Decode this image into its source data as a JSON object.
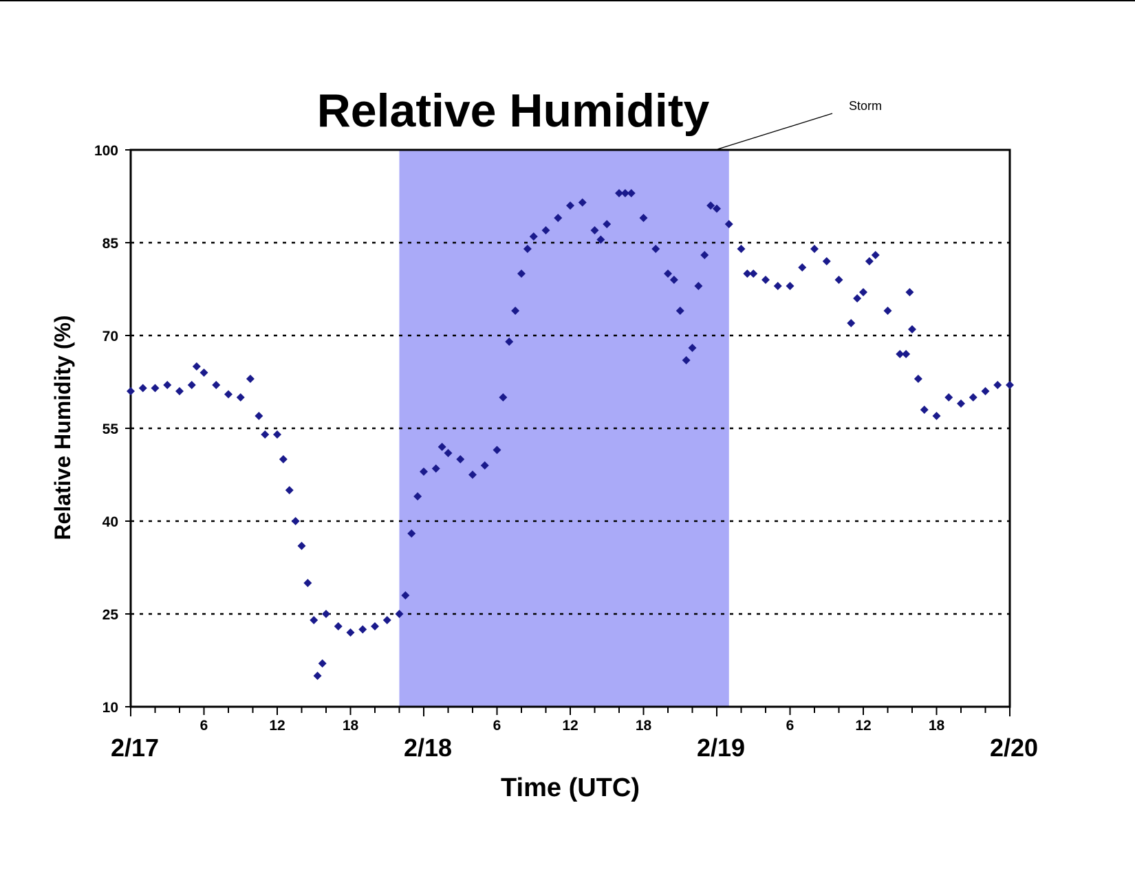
{
  "chart_data": {
    "type": "scatter",
    "title": "Relative Humidity",
    "x_label": "Time (UTC)",
    "y_label": "Relative Humidity (%)",
    "xlim": [
      0,
      72
    ],
    "ylim": [
      10,
      100
    ],
    "yticks": [
      10,
      25,
      40,
      55,
      70,
      85,
      100
    ],
    "xticks": [
      6,
      12,
      18,
      {
        "value": 30,
        "label": "6"
      },
      {
        "value": 36,
        "label": "12"
      },
      {
        "value": 42,
        "label": "18"
      },
      {
        "value": 54,
        "label": "6"
      },
      {
        "value": 60,
        "label": "12"
      },
      {
        "value": 66,
        "label": "18"
      }
    ],
    "date_ticks": [
      {
        "value": 0,
        "label": "2/17"
      },
      {
        "value": 24,
        "label": "2/18"
      },
      {
        "value": 48,
        "label": "2/19"
      },
      {
        "value": 72,
        "label": "2/20"
      }
    ],
    "x_minor_ticks": [
      0,
      2,
      4,
      6,
      8,
      10,
      12,
      14,
      16,
      18,
      20,
      22,
      24,
      26,
      28,
      30,
      32,
      34,
      36,
      38,
      40,
      42,
      44,
      46,
      48,
      50,
      52,
      54,
      56,
      58,
      60,
      62,
      64,
      66,
      68,
      70,
      72
    ],
    "grid": true,
    "color": "#1a1a8c",
    "annotation": {
      "label": "Storm",
      "start": 22,
      "end": 49,
      "color": "#aaaaf8"
    },
    "x": [
      0,
      1,
      2,
      3,
      4,
      5,
      5.4,
      6,
      7,
      8,
      9,
      9.8,
      10.5,
      11,
      12,
      12.5,
      13,
      13.5,
      14,
      14.5,
      15,
      15.3,
      15.7,
      16,
      17,
      18,
      19,
      20,
      21,
      22,
      22.5,
      23,
      23.5,
      24,
      25,
      25.5,
      26,
      27,
      28,
      29,
      30,
      30.5,
      31,
      31.5,
      32,
      32.5,
      33,
      34,
      35,
      36,
      37,
      38,
      38.5,
      39,
      40,
      40.5,
      41,
      42,
      43,
      44,
      44.5,
      45,
      45.5,
      46,
      46.5,
      47,
      47.5,
      48,
      49,
      50,
      50.5,
      51,
      52,
      53,
      54,
      55,
      56,
      57,
      58,
      59,
      59.5,
      60,
      60.5,
      61,
      62,
      63,
      63.5,
      63.8,
      64,
      64.5,
      65,
      66,
      67,
      68,
      69,
      70,
      71,
      72
    ],
    "values": [
      61,
      61.5,
      61.5,
      62,
      61,
      62,
      65,
      64,
      62,
      60.5,
      60,
      63,
      57,
      54,
      54,
      50,
      45,
      40,
      36,
      30,
      24,
      15,
      17,
      25,
      23,
      22,
      22.5,
      23,
      24,
      25,
      28,
      38,
      44,
      48,
      48.5,
      52,
      51,
      50,
      47.5,
      49,
      51.5,
      60,
      69,
      74,
      80,
      84,
      86,
      87,
      89,
      91,
      91.5,
      87,
      85.5,
      88,
      93,
      93,
      93,
      89,
      84,
      80,
      79,
      74,
      66,
      68,
      78,
      83,
      91,
      90.5,
      88,
      84,
      80,
      80,
      79,
      78,
      78,
      81,
      84,
      82,
      79,
      72,
      76,
      77,
      82,
      83,
      74,
      67,
      67,
      77,
      71,
      63,
      58,
      57,
      60,
      59,
      60,
      61,
      62,
      62
    ]
  }
}
